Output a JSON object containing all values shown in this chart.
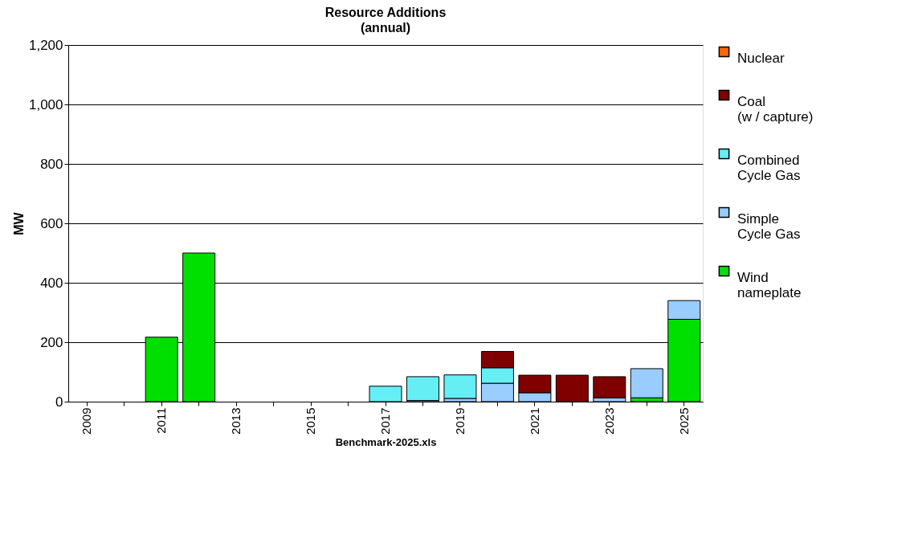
{
  "chart_data": {
    "type": "bar",
    "title": "Resource Additions",
    "subtitle": "(annual)",
    "xlabel": "Benchmark-2025.xls",
    "ylabel": "MW",
    "categories": [
      "2009",
      null,
      "2011",
      null,
      "2013",
      null,
      "2015",
      null,
      "2017",
      null,
      "2019",
      null,
      "2021",
      null,
      "2023",
      null,
      "2025"
    ],
    "stacked": true,
    "series": [
      {
        "name": "Wind\nnameplate",
        "color": "#00e000",
        "values": [
          null,
          null,
          217,
          500,
          null,
          null,
          null,
          null,
          null,
          null,
          null,
          null,
          null,
          null,
          null,
          13,
          277
        ]
      },
      {
        "name": "Simple\nCycle Gas",
        "color": "#99ccff",
        "values": [
          null,
          null,
          null,
          null,
          null,
          null,
          null,
          null,
          null,
          4,
          11,
          62,
          30,
          null,
          13,
          98,
          63
        ]
      },
      {
        "name": "Combined\nCycle Gas",
        "color": "#66eef5",
        "values": [
          null,
          null,
          null,
          null,
          null,
          null,
          null,
          null,
          52,
          80,
          79,
          52,
          null,
          null,
          null,
          null,
          null
        ]
      },
      {
        "name": "Coal\n(w / capture)",
        "color": "#800000",
        "values": [
          null,
          null,
          null,
          null,
          null,
          null,
          null,
          null,
          null,
          null,
          null,
          55,
          59,
          89,
          71,
          null,
          null
        ]
      },
      {
        "name": "Nuclear",
        "color": "#ff6600",
        "values": [
          null,
          null,
          null,
          null,
          null,
          null,
          null,
          null,
          null,
          null,
          null,
          null,
          null,
          null,
          null,
          null,
          null
        ]
      }
    ],
    "ylim": [
      0,
      1200
    ],
    "yticks": [
      0,
      200,
      400,
      600,
      800,
      {
        "value": 1000,
        "label": "1,000"
      },
      {
        "value": 1200,
        "label": "1,200"
      }
    ],
    "grid": "y",
    "legend": "right"
  }
}
